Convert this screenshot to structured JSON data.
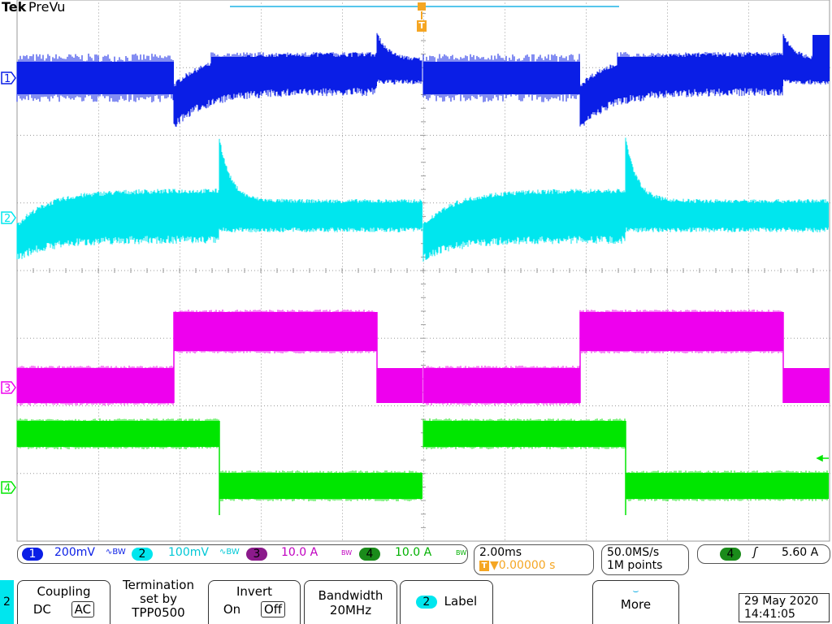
{
  "header": {
    "brand": "Tek",
    "mode": "PreVu"
  },
  "trigger_marker": "T",
  "colors": {
    "ch1": "#0a1ee6",
    "ch2": "#00e6ee",
    "ch3": "#ee00ee",
    "ch4": "#00e600",
    "trigger": "#f5a623",
    "grid": "#9a9a9a"
  },
  "channels": [
    {
      "id": "1",
      "marker": "1",
      "scale": "200mV",
      "suffix": "∿BW"
    },
    {
      "id": "2",
      "marker": "2",
      "scale": "100mV",
      "suffix": "∿BW"
    },
    {
      "id": "3",
      "marker": "3",
      "scale": "10.0 A",
      "suffix": "BW"
    },
    {
      "id": "4",
      "marker": "4",
      "scale": "10.0 A",
      "suffix": "BW"
    }
  ],
  "timebase": {
    "scale": "2.00ms",
    "trigger_pos": "▼0.00000 s"
  },
  "acquisition": {
    "rate": "50.0MS/s",
    "points": "1M points"
  },
  "trigger": {
    "source": "4",
    "slope": "ʃ",
    "level": "5.60 A"
  },
  "menu": {
    "selected_channel": "2",
    "coupling": {
      "title": "Coupling",
      "opt1": "DC",
      "opt2": "AC"
    },
    "termination": {
      "line1": "Termination",
      "line2": "set by",
      "line3": "TPP0500"
    },
    "invert": {
      "title": "Invert",
      "opt1": "On",
      "opt2": "Off"
    },
    "bandwidth": {
      "line1": "Bandwidth",
      "line2": "20MHz"
    },
    "label": {
      "chip": "2",
      "text": "Label"
    },
    "more": {
      "arrow": "⌣",
      "text": "More"
    }
  },
  "datetime": {
    "date": "29 May 2020",
    "time": "14:41:05"
  }
}
